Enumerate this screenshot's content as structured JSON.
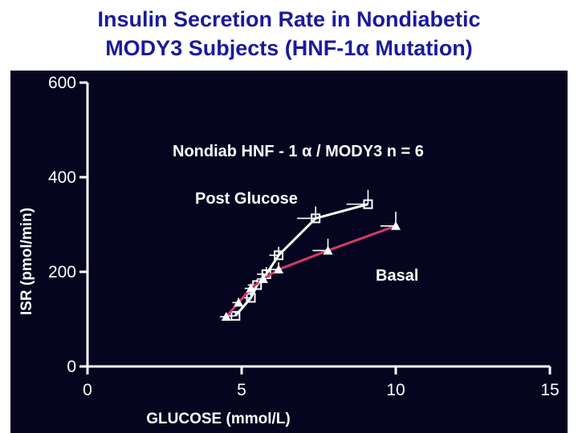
{
  "title_lines": [
    "Insulin Secretion Rate in Nondiabetic",
    "MODY3 Subjects (HNF-1α Mutation)"
  ],
  "chart_data": {
    "type": "line",
    "title": "Insulin Secretion Rate in Nondiabetic MODY3 Subjects (HNF-1α Mutation)",
    "xlabel": "GLUCOSE (mmol/L)",
    "ylabel": "ISR (pmol/min)",
    "xlim": [
      0,
      15
    ],
    "ylim": [
      0,
      600
    ],
    "x_ticks": [
      0,
      5,
      10,
      15
    ],
    "y_ticks": [
      0,
      200,
      400,
      600
    ],
    "grid": false,
    "annotations": [
      "Nondiab HNF - 1 α  / MODY3 n = 6",
      "Post Glucose",
      "Basal"
    ],
    "series": [
      {
        "name": "Post Glucose",
        "color": "#ffffff",
        "marker": "open-square",
        "x": [
          4.8,
          5.3,
          5.5,
          5.8,
          6.2,
          7.4,
          9.1
        ],
        "y": [
          107,
          145,
          172,
          195,
          235,
          313,
          343
        ],
        "xerr": [
          0.3,
          0.3,
          0.3,
          0.3,
          0.3,
          0.6,
          0.7
        ],
        "yerr": [
          10,
          12,
          12,
          15,
          18,
          25,
          30
        ]
      },
      {
        "name": "Basal",
        "color": "#d23c64",
        "marker": "filled-triangle",
        "x": [
          4.5,
          4.9,
          5.3,
          5.7,
          6.2,
          7.8,
          10.0
        ],
        "y": [
          105,
          135,
          165,
          185,
          205,
          245,
          297
        ],
        "xerr": [
          0.2,
          0.2,
          0.2,
          0.2,
          0.3,
          0.5,
          0.5
        ],
        "yerr": [
          8,
          10,
          10,
          12,
          15,
          25,
          30
        ]
      }
    ]
  }
}
